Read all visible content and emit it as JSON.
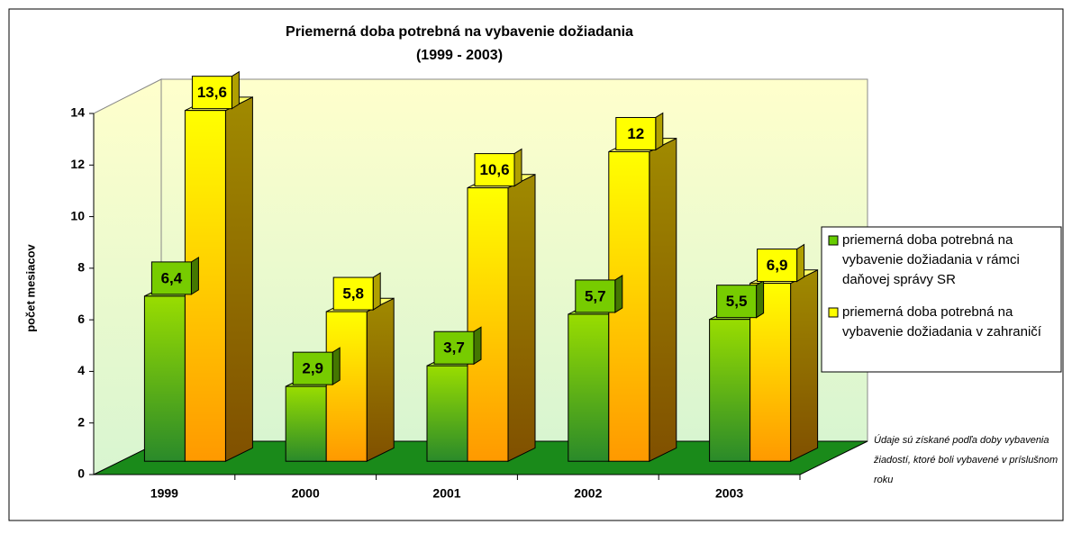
{
  "chart_data": {
    "type": "bar3d",
    "title": "Priemerná doba potrebná na vybavenie dožiadania",
    "subtitle": "(1999 - 2003)",
    "y_label": "počet mesiacov",
    "annotation": "Údaje sú získané podľa doby vybavenia žiadostí, ktoré boli vybavené v príslušnom roku",
    "categories": [
      "1999",
      "2000",
      "2001",
      "2002",
      "2003"
    ],
    "series": [
      {
        "name": "priemerná doba potrebná na vybavenie dožiadania v rámci daňovej správy SR",
        "color": "#66cc00",
        "values": [
          6.4,
          2.9,
          3.7,
          5.7,
          5.5
        ],
        "value_labels": [
          "6,4",
          "2,9",
          "3,7",
          "5,7",
          "5,5"
        ]
      },
      {
        "name": "priemerná doba potrebná na vybavenie dožiadania v zahraničí",
        "color": "#ffff00",
        "values": [
          13.6,
          5.8,
          10.6,
          12,
          6.9
        ],
        "value_labels": [
          "13,6",
          "5,8",
          "10,6",
          "12",
          "6,9"
        ]
      }
    ],
    "ylim": [
      0,
      14
    ],
    "yticks": [
      0,
      2,
      4,
      6,
      8,
      10,
      12,
      14
    ],
    "legend": "right"
  }
}
